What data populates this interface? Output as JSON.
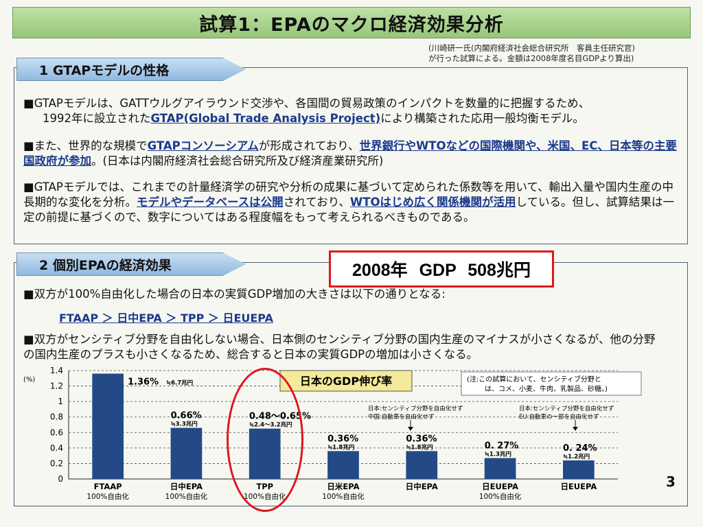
{
  "header": {
    "title": "試算1：EPAのマクロ経済効果分析"
  },
  "source_note": {
    "line1": "(川崎研一氏(内閣府経済社会総合研究所　客員主任研究官)",
    "line2": "が行った試算による。金額は2008年度名目GDPより算出)"
  },
  "section1": {
    "tab": "1 GTAPモデルの性格",
    "p1a": "■GTAPモデルは、GATTウルグアイラウンド交渉や、各国間の貿易政策のインパクトを数量的に把握するため、",
    "p1b": "1992年に設立された",
    "p1c": "GTAP(Global Trade Analysis Project)",
    "p1d": "により構築された応用一般均衡モデル。",
    "p2a": "■また、世界的な規模で",
    "p2b": "GTAPコンソーシアム",
    "p2c": "が形成されており、",
    "p2d": "世界銀行やWTOなどの国際機関や、米国、EC、日本等の主要国政府が参加",
    "p2e": "。(日本は内閣府経済社会総合研究所及び経済産業研究所)",
    "p3a": "■GTAPモデルでは、これまでの計量経済学の研究や分析の成果に基づいて定められた係数等を用いて、輸出入量や国内生産の中長期的な変化を分析。",
    "p3b": "モデルやデータベースは公開",
    "p3c": "されており、",
    "p3d": "WTOはじめ広く関係機関が活用",
    "p3e": "している。但し、試算結果は一定の前提に基づくので、数字についてはある程度幅をもって考えられるべきものである。"
  },
  "section2": {
    "tab": "2 個別EPAの経済効果",
    "highlight": "2008年 GDP 508兆円",
    "p1": "■双方が100%自由化した場合の日本の実質GDP増加の大きさは以下の通りとなる:",
    "ranking": "FTAAP ＞ 日中EPA ＞ TPP ＞ 日EUEPA",
    "p2": "■双方がセンシティブ分野を自由化しない場合、日本側のセンシティブ分野の国内生産のマイナスが小さくなるが、他の分野の国内生産のプラスも小さくなるため、総合すると日本の実質GDPの増加は小さくなる。"
  },
  "chart_data": {
    "type": "bar",
    "title": "日本のGDP伸び率",
    "ylabel": "(%)",
    "ylim": [
      0,
      1.4
    ],
    "yticks": [
      "0",
      "0.2",
      "0.4",
      "0.6",
      "0.8",
      "1",
      "1.2",
      "1.4"
    ],
    "grid": true,
    "colors": {
      "bar": "#234a86",
      "title_bg": "#f3ea9a"
    },
    "categories": [
      {
        "name": "FTAAP",
        "sub": "100%自由化"
      },
      {
        "name": "日中EPA",
        "sub": "100%自由化"
      },
      {
        "name": "TPP",
        "sub": "100%自由化"
      },
      {
        "name": "日米EPA",
        "sub": "100%自由化"
      },
      {
        "name": "日中EPA",
        "sub": ""
      },
      {
        "name": "日EUEPA",
        "sub": "100%自由化"
      },
      {
        "name": "日EUEPA",
        "sub": ""
      }
    ],
    "values": [
      1.36,
      0.66,
      0.65,
      0.36,
      0.36,
      0.27,
      0.24
    ],
    "labels": [
      {
        "main": "1.36%",
        "sub": "≒6.7兆円"
      },
      {
        "main": "0.66%",
        "sub": "≒3.3兆円"
      },
      {
        "main": "0.48〜0.65%",
        "sub": "≒2.4〜3.2兆円"
      },
      {
        "main": "0.36%",
        "sub": "≒1.8兆円"
      },
      {
        "main": "0.36%",
        "sub": "≒1.8兆円"
      },
      {
        "main": "0. 27%",
        "sub": "≒1.3兆円"
      },
      {
        "main": "0. 24%",
        "sub": "≒1.2兆円"
      }
    ],
    "annotations": {
      "note1": "(注:この試算において、センシティブ分野と",
      "note2": "は、コメ、小麦、牛肉、乳製品、砂糖。)",
      "japan_china_1": "日本:センシティブ分野を自由化せず",
      "japan_china_2": "中国:自動車を自由化せず",
      "japan_eu_1": "日本:センシティブ分野を自由化せず",
      "japan_eu_2": "EU:自動車の一部を自由化せず"
    }
  },
  "page_number": "3"
}
